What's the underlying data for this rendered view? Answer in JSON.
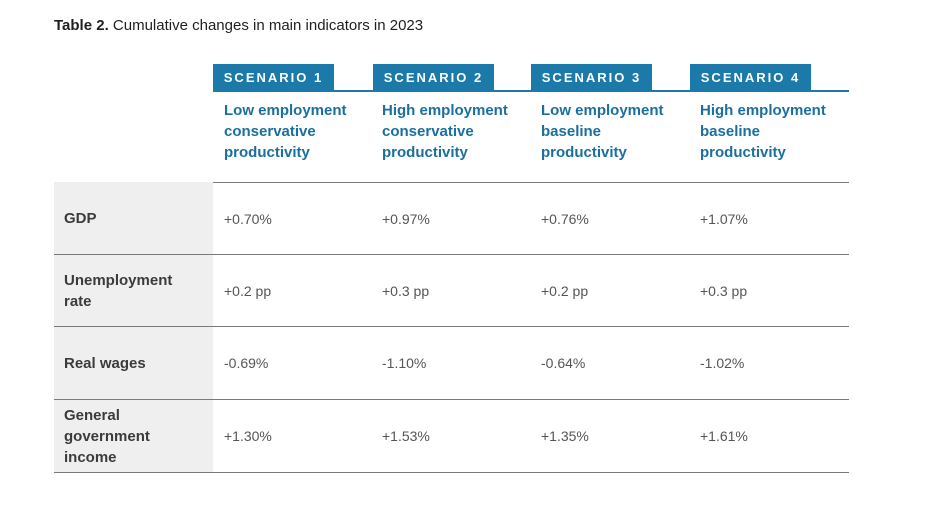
{
  "title": {
    "bold": "Table 2.",
    "text": " Cumulative changes in main indicators in 2023"
  },
  "scenarios": [
    {
      "tab": "SCENARIO 1",
      "desc": [
        "Low employment",
        "conservative",
        "productivity"
      ]
    },
    {
      "tab": "SCENARIO 2",
      "desc": [
        "High employment",
        "conservative",
        "productivity"
      ]
    },
    {
      "tab": "SCENARIO 3",
      "desc": [
        "Low employment",
        "baseline",
        "productivity"
      ]
    },
    {
      "tab": "SCENARIO 4",
      "desc": [
        "High employment",
        "baseline",
        "productivity"
      ]
    }
  ],
  "rows": [
    {
      "label": [
        "GDP"
      ],
      "values": [
        "+0.70%",
        "+0.97%",
        "+0.76%",
        "+1.07%"
      ]
    },
    {
      "label": [
        "Unemployment",
        "rate"
      ],
      "values": [
        "+0.2 pp",
        "+0.3 pp",
        "+0.2 pp",
        "+0.3 pp"
      ]
    },
    {
      "label": [
        "Real wages"
      ],
      "values": [
        "-0.69%",
        "-1.10%",
        "-0.64%",
        "-1.02%"
      ]
    },
    {
      "label": [
        "General",
        "government",
        "income"
      ],
      "values": [
        "+1.30%",
        "+1.53%",
        "+1.35%",
        "+1.61%"
      ]
    }
  ],
  "colors": {
    "accent": "#1b7aaa",
    "subhead": "#1b6f9f",
    "label_bg": "#efefef",
    "rule": "#7a7a7a"
  }
}
